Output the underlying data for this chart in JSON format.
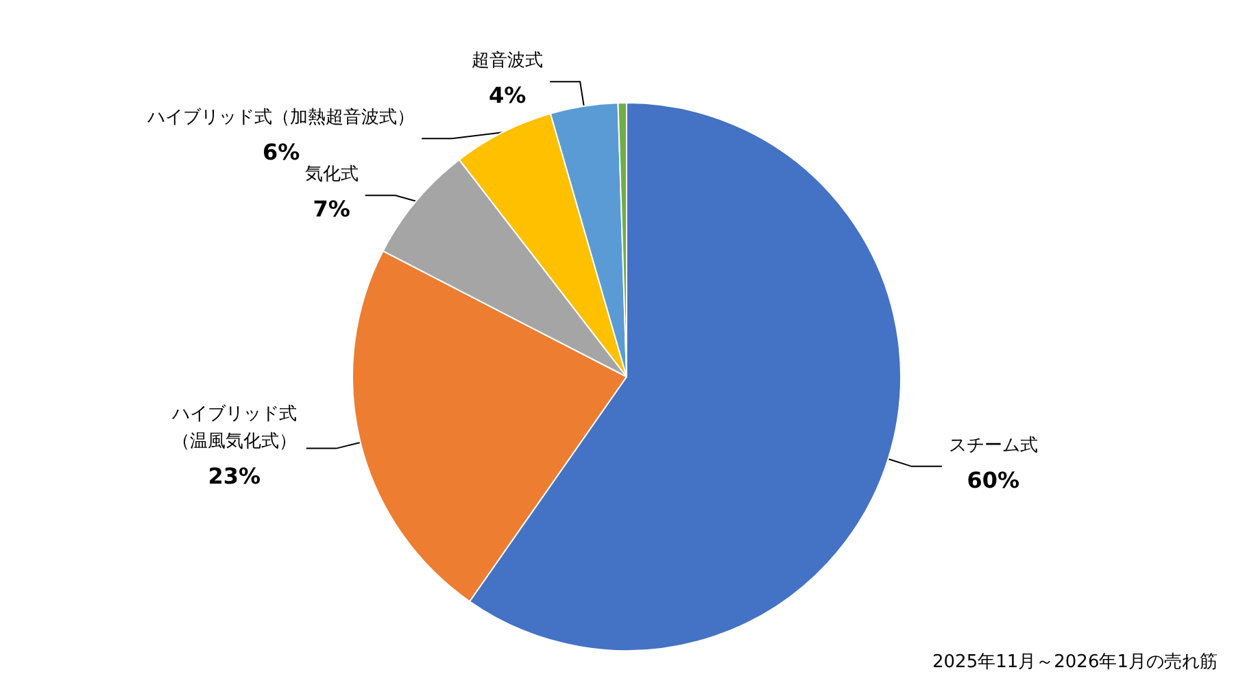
{
  "chart_data": {
    "type": "pie",
    "categories": [
      "スチーム式",
      "ハイブリッド式（温風気化式）",
      "気化式",
      "ハイブリッド式（加熱超音波式）",
      "超音波式",
      null
    ],
    "values": [
      60,
      23,
      7,
      6,
      4,
      0.5
    ],
    "value_labels": [
      "60%",
      "23%",
      "7%",
      "6%",
      "4%",
      null
    ],
    "colors": [
      "#4472c4",
      "#ed7d31",
      "#a5a5a5",
      "#ffc000",
      "#5b9bd5",
      "#70ad47"
    ],
    "legend": false,
    "annotations": [
      "2025年11月～2026年1月の売れ筋"
    ]
  }
}
